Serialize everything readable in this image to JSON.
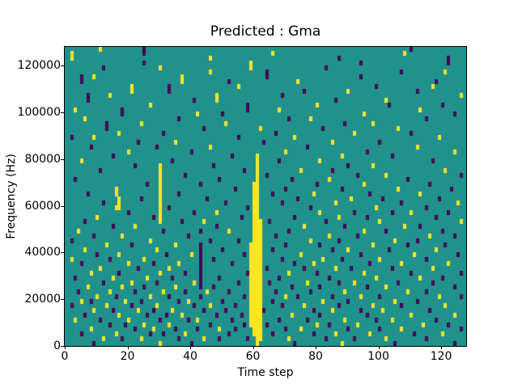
{
  "title": "Predicted : Gma",
  "colors": {
    "figure_background": "#ffffff",
    "axis_text": "#000000",
    "spine": "#000000",
    "heatmap_low_purple": "#440154",
    "heatmap_mid_teal": "#21918c",
    "heatmap_high_yellow": "#fde725"
  },
  "chart_data": {
    "type": "heatmap",
    "title": "Predicted : Gma",
    "xlabel": "Time step",
    "ylabel": "Frequency (Hz)",
    "xlim": [
      0,
      128
    ],
    "ylim": [
      0,
      128000
    ],
    "xticks": [
      0,
      20,
      40,
      60,
      80,
      100,
      120
    ],
    "yticks": [
      0,
      20000,
      40000,
      60000,
      80000,
      100000,
      120000
    ],
    "grid": false,
    "legend": false,
    "colormap": "viridis-3-level",
    "value_colors": {
      "low": "#440154",
      "mid": "#21918c",
      "high": "#fde725"
    },
    "grid_shape_rows_cols": [
      64,
      128
    ],
    "rows_order": "top_to_bottom",
    "notable_features": [
      "solid yellow vertical band at time steps 59-62 from 0 Hz up to ~82000 Hz",
      "thin yellow streak at time step 30 between ~52000 and ~76000 Hz",
      "long dark purple run at time step 43 between ~4000 and ~44000 Hz",
      "dense mixed speckle in lower third, sparse speckle near top"
    ],
    "rows": [
      {
        "y": [
          11
        ],
        "p": [
          25,
          110
        ]
      },
      {
        "y": [
          2,
          66,
          108
        ],
        "p": [
          25
        ]
      },
      {
        "y": [
          2,
          46
        ],
        "p": [
          87,
          122
        ]
      },
      {
        "y": [
          59
        ],
        "p": [
          25,
          94,
          122
        ]
      },
      {
        "y": [
          30,
          59
        ],
        "p": [
          12,
          83
        ]
      },
      {
        "y": [
          46,
          121
        ],
        "p": [
          64,
          107
        ]
      },
      {
        "y": [
          9,
          37
        ],
        "p": [
          5,
          64,
          94
        ]
      },
      {
        "y": [
          37,
          74
        ],
        "p": [
          5,
          52,
          118
        ]
      },
      {
        "y": [
          21,
          55,
          117
        ],
        "p": [
          33,
          99
        ]
      },
      {
        "y": [
          21,
          90
        ],
        "p": [
          33,
          76,
          112
        ]
      },
      {
        "y": [
          14,
          48,
          126
        ],
        "p": [
          7,
          69
        ]
      },
      {
        "y": [
          48,
          102
        ],
        "p": [
          7,
          41,
          86
        ]
      },
      {
        "y": [
          27,
          80
        ],
        "p": [
          58,
          103,
          120
        ]
      },
      {
        "y": [
          3,
          68,
          113
        ],
        "p": [
          18,
          58
        ]
      },
      {
        "y": [
          42,
          95
        ],
        "p": [
          18,
          50,
          124
        ]
      },
      {
        "y": [
          6,
          78
        ],
        "p": [
          36,
          71,
          115
        ]
      },
      {
        "y": [
          24,
          51,
          98
        ],
        "p": [
          13,
          89
        ]
      },
      {
        "y": [
          62,
          106
        ],
        "p": [
          13,
          44,
          82
        ]
      },
      {
        "y": [
          17,
          92
        ],
        "p": [
          31,
          67,
          110
        ]
      },
      {
        "y": [
          9,
          73,
          119
        ],
        "p": [
          2,
          55
        ]
      },
      {
        "y": [
          35,
          85
        ],
        "p": [
          23,
          63,
          100
        ]
      },
      {
        "y": [
          46,
          112
        ],
        "p": [
          8,
          29,
          77
        ]
      },
      {
        "y": [
          20,
          70,
          124
        ],
        "p": [
          40,
          96
        ]
      },
      {
        "y": [
          61,
          88
        ],
        "p": [
          15,
          53,
          104
        ]
      },
      {
        "y": [
          5,
          61,
          81
        ],
        "p": [
          34,
          68,
          117
        ]
      },
      {
        "y": [
          30,
          61,
          98
        ],
        "p": [
          22,
          47,
          90
        ]
      },
      {
        "y": [
          30,
          61,
          75,
          121
        ],
        "p": [
          11,
          57,
          85
        ]
      },
      {
        "y": [
          30,
          61,
          102
        ],
        "p": [
          38,
          64,
          93,
          126
        ]
      },
      {
        "y": [
          30,
          61,
          84
        ],
        "p": [
          3,
          49,
          72,
          109
        ]
      },
      {
        "y": [
          30,
          60,
          61,
          95
        ],
        "p": [
          26,
          43,
          80,
          116
        ]
      },
      {
        "y": [
          16,
          30,
          60,
          61,
          106
        ],
        "p": [
          54,
          70,
          88,
          123
        ]
      },
      {
        "y": [
          16,
          30,
          60,
          61,
          79,
          113
        ],
        "p": [
          7,
          36,
          66,
          97
        ]
      },
      {
        "y": [
          17,
          30,
          60,
          61,
          91
        ],
        "p": [
          24,
          45,
          74,
          101,
          119
        ]
      },
      {
        "y": [
          17,
          30,
          60,
          61,
          86,
          125
        ],
        "p": [
          12,
          51,
          69,
          107
        ]
      },
      {
        "y": [
          16,
          17,
          30,
          60,
          61,
          99
        ],
        "p": [
          33,
          58,
          78,
          115
        ]
      },
      {
        "y": [
          30,
          48,
          60,
          61,
          81,
          110
        ],
        "p": [
          20,
          41,
          92,
          104,
          122
        ]
      },
      {
        "y": [
          10,
          30,
          60,
          61,
          87
        ],
        "p": [
          28,
          56,
          73,
          96,
          118
        ]
      },
      {
        "y": [
          30,
          44,
          60,
          61,
          62,
          100,
          126
        ],
        "p": [
          6,
          37,
          65,
          83
        ]
      },
      {
        "y": [
          22,
          60,
          61,
          62,
          76,
          108
        ],
        "p": [
          15,
          48,
          89,
          113
        ]
      },
      {
        "y": [
          4,
          52,
          60,
          61,
          62,
          95
        ],
        "p": [
          31,
          43,
          71,
          102,
          120
        ]
      },
      {
        "y": [
          18,
          60,
          61,
          62,
          84,
          116
        ],
        "p": [
          9,
          39,
          67,
          93,
          124
        ]
      },
      {
        "y": [
          27,
          60,
          61,
          62,
          78,
          105
        ],
        "p": [
          2,
          46,
          55,
          87,
          112
        ]
      },
      {
        "y": [
          13,
          35,
          59,
          60,
          61,
          62,
          98
        ],
        "p": [
          21,
          43,
          70,
          81,
          109,
          121
        ]
      },
      {
        "y": [
          6,
          29,
          59,
          60,
          61,
          62,
          90,
          118
        ],
        "p": [
          43,
          50,
          66,
          85,
          103
        ]
      },
      {
        "y": [
          17,
          40,
          59,
          60,
          61,
          62,
          75,
          111
        ],
        "p": [
          10,
          32,
          43,
          57,
          94,
          125
        ]
      },
      {
        "y": [
          2,
          25,
          59,
          60,
          61,
          62,
          82,
          100
        ],
        "p": [
          14,
          43,
          47,
          69,
          88,
          115
        ]
      },
      {
        "y": [
          20,
          36,
          59,
          60,
          61,
          62,
          79,
          107,
          122
        ],
        "p": [
          5,
          28,
          43,
          53,
          73,
          97
        ]
      },
      {
        "y": [
          11,
          33,
          59,
          60,
          61,
          62,
          86,
          117
        ],
        "p": [
          23,
          43,
          64,
          76,
          91,
          104
        ]
      },
      {
        "y": [
          8,
          30,
          59,
          60,
          61,
          62,
          71,
          95
        ],
        "p": [
          17,
          38,
          43,
          58,
          80,
          110,
          126
        ]
      },
      {
        "y": [
          15,
          26,
          59,
          60,
          61,
          62,
          99,
          113
        ],
        "p": [
          3,
          34,
          43,
          49,
          68,
          84,
          120
        ]
      },
      {
        "y": [
          21,
          41,
          59,
          60,
          61,
          62,
          77,
          92
        ],
        "p": [
          12,
          29,
          43,
          55,
          65,
          87,
          106,
          117
        ]
      },
      {
        "y": [
          7,
          18,
          35,
          59,
          60,
          61,
          62,
          102
        ],
        "p": [
          25,
          43,
          47,
          72,
          81,
          96,
          124
        ]
      },
      {
        "y": [
          14,
          31,
          45,
          59,
          60,
          61,
          62,
          89,
          109
        ],
        "p": [
          4,
          22,
          38,
          52,
          67,
          78,
          115
        ]
      },
      {
        "y": [
          10,
          27,
          59,
          60,
          61,
          62,
          70,
          94,
          119
        ],
        "p": [
          16,
          33,
          43,
          57,
          74,
          85,
          100,
          126
        ]
      },
      {
        "y": [
          5,
          19,
          39,
          59,
          60,
          61,
          62,
          82,
          105
        ],
        "p": [
          8,
          24,
          36,
          50,
          66,
          90,
          112
        ]
      },
      {
        "y": [
          13,
          29,
          46,
          59,
          60,
          61,
          62,
          76,
          98,
          121
        ],
        "p": [
          2,
          21,
          41,
          54,
          69,
          87,
          107
        ]
      },
      {
        "y": [
          9,
          23,
          34,
          59,
          60,
          61,
          62,
          85,
          101
        ],
        "p": [
          15,
          28,
          44,
          51,
          63,
          79,
          94,
          116
        ]
      },
      {
        "y": [
          17,
          37,
          59,
          60,
          61,
          62,
          72,
          110,
          124
        ],
        "p": [
          6,
          26,
          32,
          48,
          56,
          81,
          96
        ]
      },
      {
        "y": [
          3,
          20,
          42,
          59,
          60,
          61,
          62,
          89,
          104
        ],
        "p": [
          11,
          30,
          39,
          53,
          68,
          77,
          99,
          118
        ]
      },
      {
        "y": [
          25,
          33,
          59,
          60,
          61,
          62,
          80,
          93,
          114
        ],
        "p": [
          14,
          19,
          46,
          57,
          64,
          84,
          122
        ]
      },
      {
        "y": [
          8,
          28,
          49,
          60,
          61,
          62,
          75,
          107
        ],
        "p": [
          22,
          35,
          42,
          54,
          70,
          90,
          100,
          126
        ]
      },
      {
        "y": [
          16,
          38,
          60,
          61,
          62,
          86,
          97,
          120
        ],
        "p": [
          5,
          27,
          31,
          52,
          66,
          79,
          111
        ]
      },
      {
        "y": [
          12,
          24,
          44,
          61,
          62,
          71,
          102
        ],
        "p": [
          18,
          36,
          49,
          58,
          83,
          92,
          115
        ]
      },
      {
        "y": [
          30,
          61,
          88
        ],
        "p": [
          9,
          40,
          73,
          105,
          124
        ]
      }
    ]
  }
}
